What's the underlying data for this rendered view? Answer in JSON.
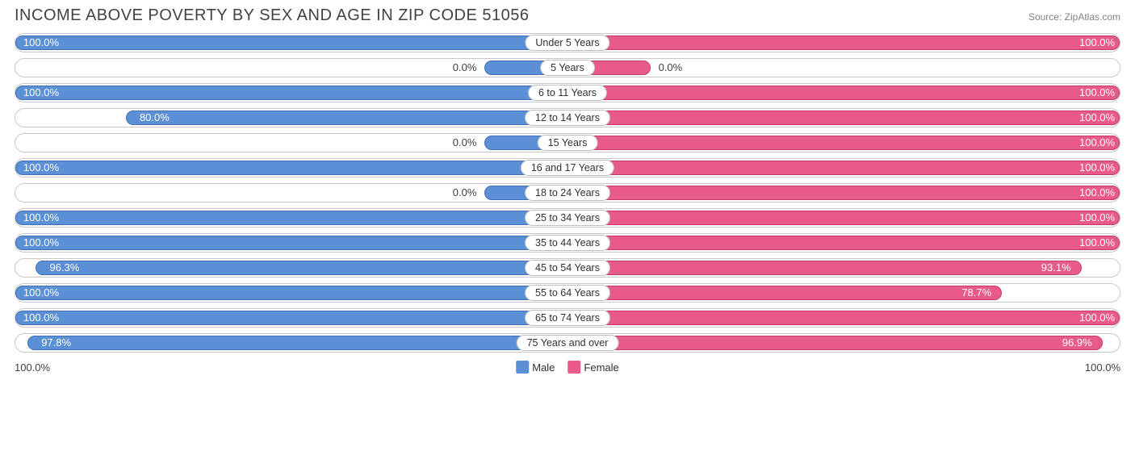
{
  "title": "INCOME ABOVE POVERTY BY SEX AND AGE IN ZIP CODE 51056",
  "source": "Source: ZipAtlas.com",
  "chart": {
    "type": "diverging-bar",
    "male_color": "#5b8fd6",
    "male_stroke": "#3f6fb0",
    "female_color": "#e85a8a",
    "female_stroke": "#c43a6a",
    "stub_pct": 15,
    "background_color": "#ffffff",
    "track_border": "#c8c8c8",
    "axis_left": "100.0%",
    "axis_right": "100.0%",
    "legend": {
      "male": "Male",
      "female": "Female"
    },
    "rows": [
      {
        "category": "Under 5 Years",
        "male": 100.0,
        "female": 100.0,
        "male_label": "100.0%",
        "female_label": "100.0%"
      },
      {
        "category": "5 Years",
        "male": 0.0,
        "female": 0.0,
        "male_label": "0.0%",
        "female_label": "0.0%"
      },
      {
        "category": "6 to 11 Years",
        "male": 100.0,
        "female": 100.0,
        "male_label": "100.0%",
        "female_label": "100.0%"
      },
      {
        "category": "12 to 14 Years",
        "male": 80.0,
        "female": 100.0,
        "male_label": "80.0%",
        "female_label": "100.0%"
      },
      {
        "category": "15 Years",
        "male": 0.0,
        "female": 100.0,
        "male_label": "0.0%",
        "female_label": "100.0%"
      },
      {
        "category": "16 and 17 Years",
        "male": 100.0,
        "female": 100.0,
        "male_label": "100.0%",
        "female_label": "100.0%"
      },
      {
        "category": "18 to 24 Years",
        "male": 0.0,
        "female": 100.0,
        "male_label": "0.0%",
        "female_label": "100.0%"
      },
      {
        "category": "25 to 34 Years",
        "male": 100.0,
        "female": 100.0,
        "male_label": "100.0%",
        "female_label": "100.0%"
      },
      {
        "category": "35 to 44 Years",
        "male": 100.0,
        "female": 100.0,
        "male_label": "100.0%",
        "female_label": "100.0%"
      },
      {
        "category": "45 to 54 Years",
        "male": 96.3,
        "female": 93.1,
        "male_label": "96.3%",
        "female_label": "93.1%"
      },
      {
        "category": "55 to 64 Years",
        "male": 100.0,
        "female": 78.7,
        "male_label": "100.0%",
        "female_label": "78.7%"
      },
      {
        "category": "65 to 74 Years",
        "male": 100.0,
        "female": 100.0,
        "male_label": "100.0%",
        "female_label": "100.0%"
      },
      {
        "category": "75 Years and over",
        "male": 97.8,
        "female": 96.9,
        "male_label": "97.8%",
        "female_label": "96.9%"
      }
    ]
  }
}
